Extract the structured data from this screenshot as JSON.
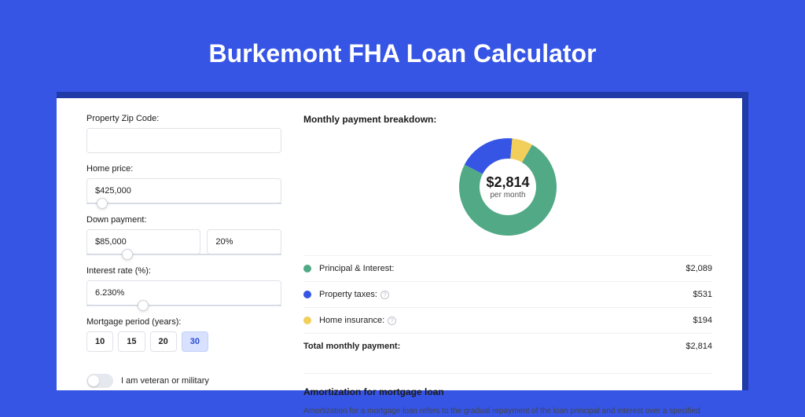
{
  "page": {
    "title": "Burkemont FHA Loan Calculator",
    "background_color": "#3655e5",
    "panel_accent_color": "#203aa8"
  },
  "form": {
    "zip_label": "Property Zip Code:",
    "zip_value": "",
    "home_price_label": "Home price:",
    "home_price_value": "$425,000",
    "home_price_slider_pct": 8,
    "down_payment_label": "Down payment:",
    "down_payment_value": "$85,000",
    "down_payment_pct_value": "20%",
    "down_payment_slider_pct": 21,
    "interest_label": "Interest rate (%):",
    "interest_value": "6.230%",
    "interest_slider_pct": 29,
    "period_label": "Mortgage period (years):",
    "period_options": [
      "10",
      "15",
      "20",
      "30"
    ],
    "period_selected_index": 3,
    "veteran_label": "I am veteran or military",
    "veteran_on": false
  },
  "breakdown": {
    "title": "Monthly payment breakdown:",
    "donut": {
      "center_value": "$2,814",
      "center_sub": "per month",
      "slices": [
        {
          "label": "Principal & Interest:",
          "value": "$2,089",
          "numeric": 2089,
          "color": "#51a985",
          "has_info": false
        },
        {
          "label": "Property taxes:",
          "value": "$531",
          "numeric": 531,
          "color": "#3655e5",
          "has_info": true
        },
        {
          "label": "Home insurance:",
          "value": "$194",
          "numeric": 194,
          "color": "#f2cf5b",
          "has_info": true
        }
      ],
      "ring_thickness": 26,
      "outer_radius": 62,
      "background_color": "#ffffff",
      "start_angle_deg": -60
    },
    "total_label": "Total monthly payment:",
    "total_value": "$2,814"
  },
  "amortization": {
    "title": "Amortization for mortgage loan",
    "text": "Amortization for a mortgage loan refers to the gradual repayment of the loan principal and interest over a specified"
  }
}
